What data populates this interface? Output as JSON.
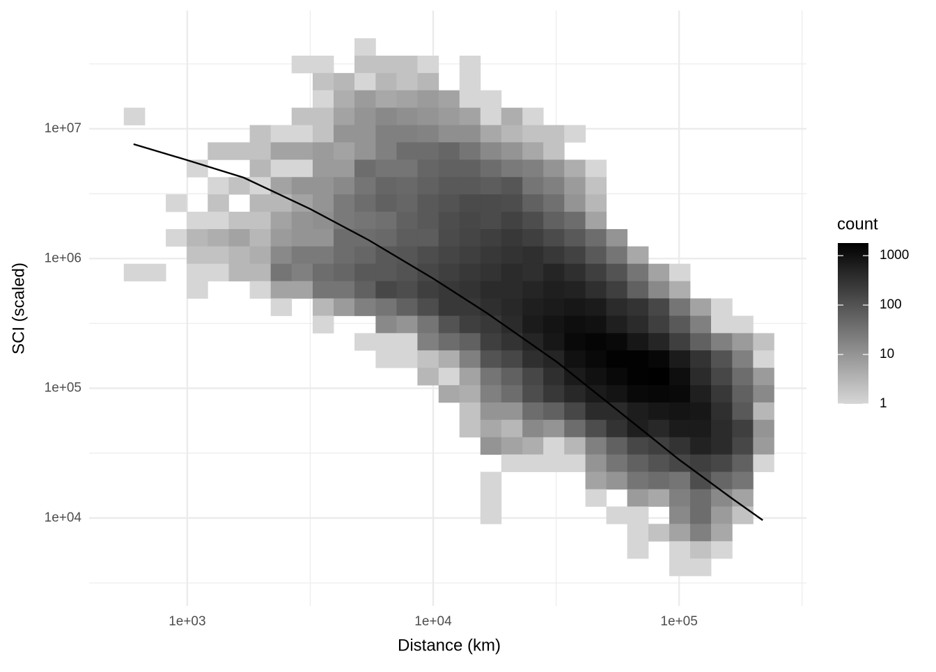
{
  "chart_data": {
    "type": "bin2d",
    "x_label": "Distance (km)",
    "y_label": "SCI (scaled)",
    "legend_title": "count",
    "log_x": true,
    "log_y": true,
    "grid": true,
    "xlim": [
      399,
      329600
    ],
    "ylim": [
      2104,
      81740000
    ],
    "xticks": [
      {
        "value": 1000,
        "label": "1e+03"
      },
      {
        "value": 10000,
        "label": "1e+04"
      },
      {
        "value": 100000,
        "label": "1e+05"
      }
    ],
    "yticks": [
      {
        "value": 10000,
        "label": "1e+04"
      },
      {
        "value": 100000,
        "label": "1e+05"
      },
      {
        "value": 1000000,
        "label": "1e+06"
      },
      {
        "value": 10000000,
        "label": "1e+07"
      }
    ],
    "xminor": [
      3162,
      31623,
      316228
    ],
    "yminor": [
      3162,
      31623,
      316228,
      3162278,
      31622777
    ],
    "fill_low": "#d6d6d6",
    "fill_high": "#000000",
    "fill_lim": [
      1,
      1800
    ],
    "fill_log": true,
    "legend_ticks": [
      1,
      10,
      100,
      1000
    ],
    "x_bins": [
      552,
      672,
      818,
      995,
      1211,
      1474,
      1795,
      2184,
      2657,
      3236,
      3936,
      4786,
      5834,
      7096,
      8630,
      10520,
      12790,
      15560,
      18920,
      23070,
      28050,
      34120,
      41590,
      50580,
      61520,
      74990,
      91200,
      110900,
      134900,
      164400,
      200000,
      243200
    ],
    "y_bins": [
      49900000,
      36640000,
      26920000,
      19820000,
      14550000,
      10690000,
      7870000,
      5780000,
      4246000,
      3126000,
      2296000,
      1687000,
      1242000,
      912000,
      670000,
      493000,
      362200,
      266100,
      195900,
      143900,
      105700,
      77800,
      57150,
      41980,
      30900,
      22700,
      16670,
      12270,
      9016,
      6622,
      4875,
      3581
    ],
    "counts": [
      [
        null,
        null,
        null,
        null,
        null,
        null,
        null,
        null,
        null,
        null,
        null,
        1,
        null,
        null,
        null,
        null,
        null,
        null,
        null,
        null,
        null,
        null,
        null,
        null,
        null,
        null,
        null,
        null,
        null,
        null,
        null
      ],
      [
        null,
        null,
        null,
        null,
        null,
        null,
        null,
        null,
        1,
        1,
        null,
        2,
        2,
        2,
        1,
        null,
        1,
        null,
        null,
        null,
        null,
        null,
        null,
        null,
        null,
        null,
        null,
        null,
        null,
        null,
        null
      ],
      [
        null,
        null,
        null,
        null,
        null,
        null,
        null,
        null,
        null,
        2,
        3,
        1,
        3,
        2,
        3,
        null,
        1,
        null,
        null,
        null,
        null,
        null,
        null,
        null,
        null,
        null,
        null,
        null,
        null,
        null,
        null
      ],
      [
        null,
        null,
        null,
        null,
        null,
        null,
        null,
        null,
        null,
        1,
        4,
        8,
        5,
        6,
        8,
        6,
        1,
        1,
        null,
        null,
        null,
        null,
        null,
        null,
        null,
        null,
        null,
        null,
        null,
        null,
        null
      ],
      [
        1,
        null,
        null,
        null,
        null,
        null,
        null,
        null,
        2,
        2,
        6,
        10,
        15,
        12,
        10,
        8,
        6,
        1,
        4,
        1,
        null,
        null,
        null,
        null,
        null,
        null,
        null,
        null,
        null,
        null,
        null
      ],
      [
        null,
        null,
        null,
        null,
        null,
        null,
        2,
        1,
        1,
        2,
        10,
        10,
        20,
        20,
        18,
        12,
        12,
        5,
        3,
        2,
        2,
        1,
        null,
        null,
        null,
        null,
        null,
        null,
        null,
        null,
        null
      ],
      [
        null,
        null,
        null,
        null,
        2,
        2,
        2,
        6,
        6,
        8,
        6,
        10,
        20,
        40,
        40,
        50,
        30,
        15,
        10,
        5,
        2,
        null,
        null,
        null,
        null,
        null,
        null,
        null,
        null,
        null,
        null
      ],
      [
        null,
        null,
        null,
        1,
        null,
        null,
        3,
        1,
        1,
        8,
        8,
        40,
        30,
        30,
        50,
        60,
        60,
        40,
        25,
        20,
        10,
        4,
        1,
        null,
        null,
        null,
        null,
        null,
        null,
        null,
        null
      ],
      [
        null,
        null,
        null,
        null,
        1,
        2,
        1,
        6,
        10,
        10,
        15,
        30,
        50,
        45,
        60,
        80,
        80,
        70,
        90,
        30,
        20,
        8,
        2,
        null,
        null,
        null,
        null,
        null,
        null,
        null,
        null
      ],
      [
        null,
        null,
        1,
        null,
        2,
        null,
        3,
        3,
        6,
        10,
        25,
        40,
        60,
        50,
        80,
        100,
        130,
        130,
        120,
        60,
        35,
        10,
        3,
        null,
        null,
        null,
        null,
        null,
        null,
        null,
        null
      ],
      [
        null,
        null,
        null,
        1,
        1,
        2,
        2,
        6,
        10,
        12,
        25,
        30,
        35,
        60,
        80,
        120,
        150,
        130,
        180,
        120,
        60,
        40,
        6,
        null,
        null,
        null,
        null,
        null,
        null,
        null,
        null
      ],
      [
        null,
        null,
        1,
        3,
        4,
        6,
        3,
        8,
        10,
        10,
        40,
        40,
        45,
        70,
        70,
        130,
        160,
        200,
        250,
        200,
        130,
        80,
        40,
        10,
        null,
        null,
        null,
        null,
        null,
        null,
        null
      ],
      [
        null,
        null,
        null,
        2,
        2,
        3,
        4,
        15,
        25,
        25,
        40,
        50,
        80,
        90,
        120,
        160,
        200,
        250,
        300,
        350,
        250,
        180,
        80,
        30,
        5,
        null,
        null,
        null,
        null,
        null,
        null
      ],
      [
        1,
        1,
        null,
        1,
        1,
        3,
        3,
        30,
        20,
        40,
        50,
        80,
        80,
        100,
        150,
        200,
        250,
        300,
        400,
        350,
        500,
        350,
        200,
        100,
        30,
        6,
        1,
        null,
        null,
        null,
        null
      ],
      [
        null,
        null,
        null,
        1,
        null,
        null,
        1,
        6,
        6,
        30,
        30,
        60,
        150,
        120,
        200,
        250,
        300,
        400,
        400,
        500,
        600,
        550,
        350,
        200,
        60,
        15,
        4,
        null,
        null,
        null,
        null
      ],
      [
        null,
        null,
        null,
        null,
        null,
        null,
        null,
        1,
        null,
        3,
        8,
        20,
        30,
        60,
        120,
        250,
        250,
        350,
        450,
        600,
        700,
        800,
        700,
        400,
        300,
        150,
        30,
        6,
        1,
        null,
        null
      ],
      [
        null,
        null,
        null,
        null,
        null,
        null,
        null,
        null,
        null,
        1,
        null,
        null,
        15,
        10,
        30,
        100,
        200,
        250,
        400,
        700,
        900,
        1100,
        1000,
        600,
        400,
        200,
        80,
        20,
        1,
        1,
        null
      ],
      [
        null,
        null,
        null,
        null,
        null,
        null,
        null,
        null,
        null,
        null,
        null,
        1,
        1,
        1,
        20,
        40,
        60,
        200,
        300,
        500,
        800,
        1300,
        1500,
        1300,
        800,
        500,
        200,
        60,
        20,
        8,
        2
      ],
      [
        null,
        null,
        null,
        null,
        null,
        null,
        null,
        null,
        null,
        null,
        null,
        null,
        1,
        1,
        2,
        4,
        20,
        100,
        150,
        350,
        500,
        1000,
        1300,
        1700,
        1700,
        1400,
        700,
        300,
        100,
        20,
        1
      ],
      [
        null,
        null,
        null,
        null,
        null,
        null,
        null,
        null,
        null,
        null,
        null,
        null,
        null,
        null,
        3,
        1,
        6,
        30,
        60,
        150,
        350,
        700,
        1000,
        1300,
        1700,
        1800,
        1100,
        400,
        150,
        40,
        8
      ],
      [
        null,
        null,
        null,
        null,
        null,
        null,
        null,
        null,
        null,
        null,
        null,
        null,
        null,
        null,
        null,
        5,
        4,
        20,
        40,
        120,
        250,
        450,
        700,
        900,
        1300,
        1400,
        1300,
        600,
        250,
        60,
        15
      ],
      [
        null,
        null,
        null,
        null,
        null,
        null,
        null,
        null,
        null,
        null,
        null,
        null,
        null,
        null,
        null,
        null,
        2,
        10,
        10,
        40,
        60,
        150,
        400,
        400,
        650,
        800,
        900,
        800,
        350,
        80,
        3
      ],
      [
        null,
        null,
        null,
        null,
        null,
        null,
        null,
        null,
        null,
        null,
        null,
        null,
        null,
        null,
        null,
        null,
        2,
        5,
        3,
        15,
        10,
        40,
        120,
        300,
        600,
        450,
        700,
        700,
        400,
        200,
        10
      ],
      [
        null,
        null,
        null,
        null,
        null,
        null,
        null,
        null,
        null,
        null,
        null,
        null,
        null,
        null,
        null,
        null,
        null,
        10,
        6,
        4,
        1,
        3,
        20,
        60,
        150,
        200,
        300,
        550,
        400,
        150,
        8
      ],
      [
        null,
        null,
        null,
        null,
        null,
        null,
        null,
        null,
        null,
        null,
        null,
        null,
        null,
        null,
        null,
        null,
        null,
        null,
        1,
        1,
        1,
        1,
        10,
        30,
        60,
        100,
        150,
        200,
        150,
        60,
        1
      ],
      [
        null,
        null,
        null,
        null,
        null,
        null,
        null,
        null,
        null,
        null,
        null,
        null,
        null,
        null,
        null,
        null,
        null,
        1,
        null,
        null,
        null,
        null,
        6,
        10,
        30,
        40,
        30,
        120,
        50,
        30,
        null
      ],
      [
        null,
        null,
        null,
        null,
        null,
        null,
        null,
        null,
        null,
        null,
        null,
        null,
        null,
        null,
        null,
        null,
        null,
        1,
        null,
        null,
        null,
        null,
        1,
        null,
        8,
        5,
        20,
        40,
        15,
        6,
        null
      ],
      [
        null,
        null,
        null,
        null,
        null,
        null,
        null,
        null,
        null,
        null,
        null,
        null,
        null,
        null,
        null,
        null,
        null,
        1,
        null,
        null,
        null,
        null,
        null,
        1,
        1,
        null,
        15,
        40,
        8,
        2,
        null
      ],
      [
        null,
        null,
        null,
        null,
        null,
        null,
        null,
        null,
        null,
        null,
        null,
        null,
        null,
        null,
        null,
        null,
        null,
        null,
        null,
        null,
        null,
        null,
        null,
        null,
        1,
        2,
        6,
        20,
        5,
        null,
        null
      ],
      [
        null,
        null,
        null,
        null,
        null,
        null,
        null,
        null,
        null,
        null,
        null,
        null,
        null,
        null,
        null,
        null,
        null,
        null,
        null,
        null,
        null,
        null,
        null,
        null,
        1,
        null,
        1,
        2,
        1,
        null,
        null
      ],
      [
        null,
        null,
        null,
        null,
        null,
        null,
        null,
        null,
        null,
        null,
        null,
        null,
        null,
        null,
        null,
        null,
        null,
        null,
        null,
        null,
        null,
        null,
        null,
        null,
        null,
        null,
        1,
        1,
        null,
        null,
        null
      ]
    ],
    "curve": {
      "color": "#000000",
      "x": [
        605,
        1000,
        1695,
        3155,
        5480,
        10000,
        16630,
        31910,
        61380,
        100000,
        163000,
        218800
      ],
      "y": [
        7620000,
        5730000,
        4207000,
        2415000,
        1384000,
        701000,
        377600,
        159200,
        59200,
        28190,
        14290,
        9620
      ]
    }
  }
}
